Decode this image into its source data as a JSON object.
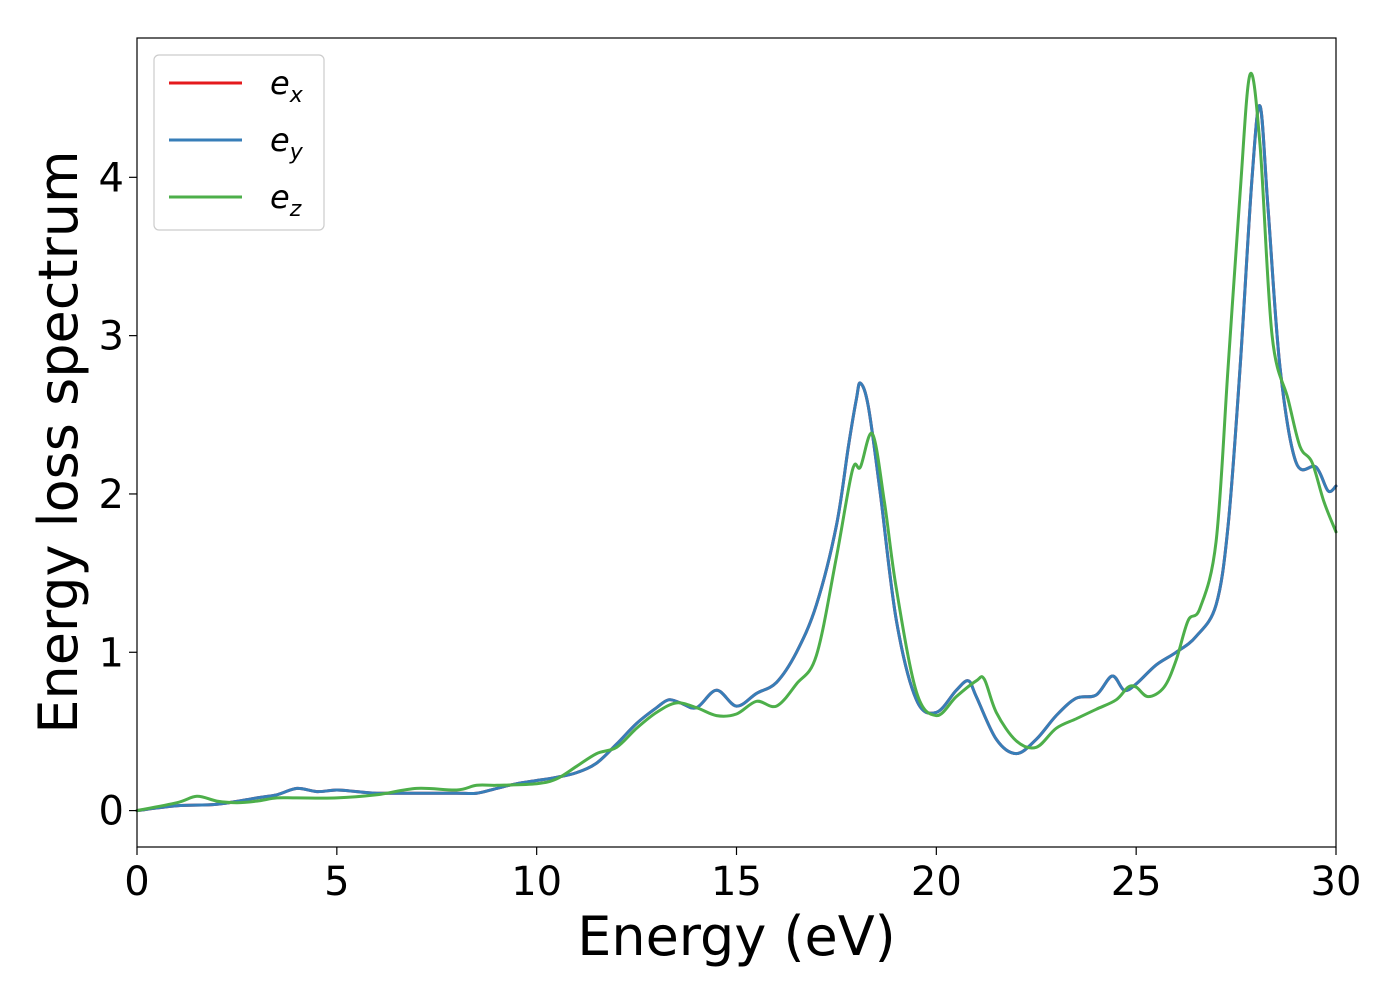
{
  "chart_data": {
    "type": "line",
    "xlabel": "Energy (eV)",
    "ylabel": "Energy loss spectrum",
    "xlim": [
      0,
      30
    ],
    "ylim": [
      -0.23,
      4.88
    ],
    "xticks": [
      0,
      5,
      10,
      15,
      20,
      25,
      30
    ],
    "yticks": [
      0,
      1,
      2,
      3,
      4
    ],
    "grid": false,
    "legend_position": "top-left",
    "series": [
      {
        "name": "e_x",
        "legend_base": "e",
        "legend_sub": "x",
        "color": "#e41a1c",
        "x": [
          0,
          1,
          2,
          3,
          3.5,
          4,
          4.5,
          5,
          5.5,
          6,
          7,
          8,
          8.5,
          9,
          9.5,
          10,
          10.5,
          11,
          11.5,
          12,
          12.5,
          13,
          13.3,
          13.6,
          14,
          14.5,
          15,
          15.5,
          16,
          16.5,
          17,
          17.5,
          17.8,
          18,
          18.1,
          18.3,
          18.6,
          19,
          19.5,
          20,
          20.5,
          20.8,
          21,
          21.5,
          22,
          22.5,
          23,
          23.5,
          24,
          24.4,
          24.7,
          25,
          25.5,
          26,
          26.5,
          27,
          27.3,
          27.6,
          27.9,
          28.1,
          28.3,
          28.6,
          29,
          29.5,
          29.8,
          30
        ],
        "y": [
          0.0,
          0.03,
          0.04,
          0.08,
          0.1,
          0.14,
          0.12,
          0.13,
          0.12,
          0.11,
          0.11,
          0.11,
          0.11,
          0.14,
          0.17,
          0.19,
          0.21,
          0.24,
          0.3,
          0.42,
          0.55,
          0.65,
          0.7,
          0.68,
          0.65,
          0.76,
          0.66,
          0.74,
          0.81,
          1.0,
          1.3,
          1.8,
          2.3,
          2.6,
          2.7,
          2.55,
          2.0,
          1.2,
          0.7,
          0.62,
          0.76,
          0.82,
          0.72,
          0.45,
          0.36,
          0.45,
          0.6,
          0.71,
          0.73,
          0.85,
          0.76,
          0.8,
          0.92,
          1.0,
          1.1,
          1.3,
          1.8,
          2.8,
          4.0,
          4.45,
          3.8,
          2.8,
          2.2,
          2.17,
          2.02,
          2.05
        ]
      },
      {
        "name": "e_y",
        "legend_base": "e",
        "legend_sub": "y",
        "color": "#377eb8",
        "x": [
          0,
          1,
          2,
          3,
          3.5,
          4,
          4.5,
          5,
          5.5,
          6,
          7,
          8,
          8.5,
          9,
          9.5,
          10,
          10.5,
          11,
          11.5,
          12,
          12.5,
          13,
          13.3,
          13.6,
          14,
          14.5,
          15,
          15.5,
          16,
          16.5,
          17,
          17.5,
          17.8,
          18,
          18.1,
          18.3,
          18.6,
          19,
          19.5,
          20,
          20.5,
          20.8,
          21,
          21.5,
          22,
          22.5,
          23,
          23.5,
          24,
          24.4,
          24.7,
          25,
          25.5,
          26,
          26.5,
          27,
          27.3,
          27.6,
          27.9,
          28.1,
          28.3,
          28.6,
          29,
          29.5,
          29.8,
          30
        ],
        "y": [
          0.0,
          0.03,
          0.04,
          0.08,
          0.1,
          0.14,
          0.12,
          0.13,
          0.12,
          0.11,
          0.11,
          0.11,
          0.11,
          0.14,
          0.17,
          0.19,
          0.21,
          0.24,
          0.3,
          0.42,
          0.55,
          0.65,
          0.7,
          0.68,
          0.65,
          0.76,
          0.66,
          0.74,
          0.81,
          1.0,
          1.3,
          1.8,
          2.3,
          2.6,
          2.7,
          2.55,
          2.0,
          1.2,
          0.7,
          0.62,
          0.76,
          0.82,
          0.72,
          0.45,
          0.36,
          0.45,
          0.6,
          0.71,
          0.73,
          0.85,
          0.76,
          0.8,
          0.92,
          1.0,
          1.1,
          1.3,
          1.8,
          2.8,
          4.0,
          4.45,
          3.8,
          2.8,
          2.2,
          2.17,
          2.02,
          2.05
        ]
      },
      {
        "name": "e_z",
        "legend_base": "e",
        "legend_sub": "z",
        "color": "#4daf4a",
        "x": [
          0,
          1,
          1.5,
          2,
          2.5,
          3,
          3.5,
          4,
          5,
          6,
          7,
          8,
          8.5,
          9,
          10,
          10.5,
          11,
          11.5,
          12,
          12.5,
          13,
          13.5,
          14,
          14.5,
          15,
          15.5,
          16,
          16.5,
          17,
          17.5,
          17.9,
          18.1,
          18.4,
          18.7,
          19,
          19.5,
          20,
          20.5,
          21,
          21.2,
          21.5,
          22,
          22.5,
          23,
          23.5,
          24,
          24.5,
          24.8,
          25,
          25.3,
          25.7,
          26,
          26.3,
          26.6,
          27,
          27.3,
          27.6,
          27.85,
          28.1,
          28.4,
          28.8,
          29.1,
          29.4,
          29.7,
          30
        ],
        "y": [
          0.0,
          0.05,
          0.09,
          0.06,
          0.05,
          0.06,
          0.08,
          0.08,
          0.08,
          0.1,
          0.14,
          0.13,
          0.16,
          0.16,
          0.17,
          0.2,
          0.28,
          0.36,
          0.4,
          0.52,
          0.62,
          0.68,
          0.65,
          0.6,
          0.61,
          0.69,
          0.66,
          0.8,
          0.98,
          1.6,
          2.15,
          2.17,
          2.38,
          1.95,
          1.4,
          0.75,
          0.6,
          0.72,
          0.82,
          0.83,
          0.62,
          0.44,
          0.4,
          0.52,
          0.58,
          0.64,
          0.7,
          0.78,
          0.78,
          0.72,
          0.78,
          0.95,
          1.2,
          1.28,
          1.7,
          2.8,
          3.9,
          4.65,
          4.2,
          3.0,
          2.6,
          2.3,
          2.2,
          1.95,
          1.76
        ]
      }
    ]
  }
}
